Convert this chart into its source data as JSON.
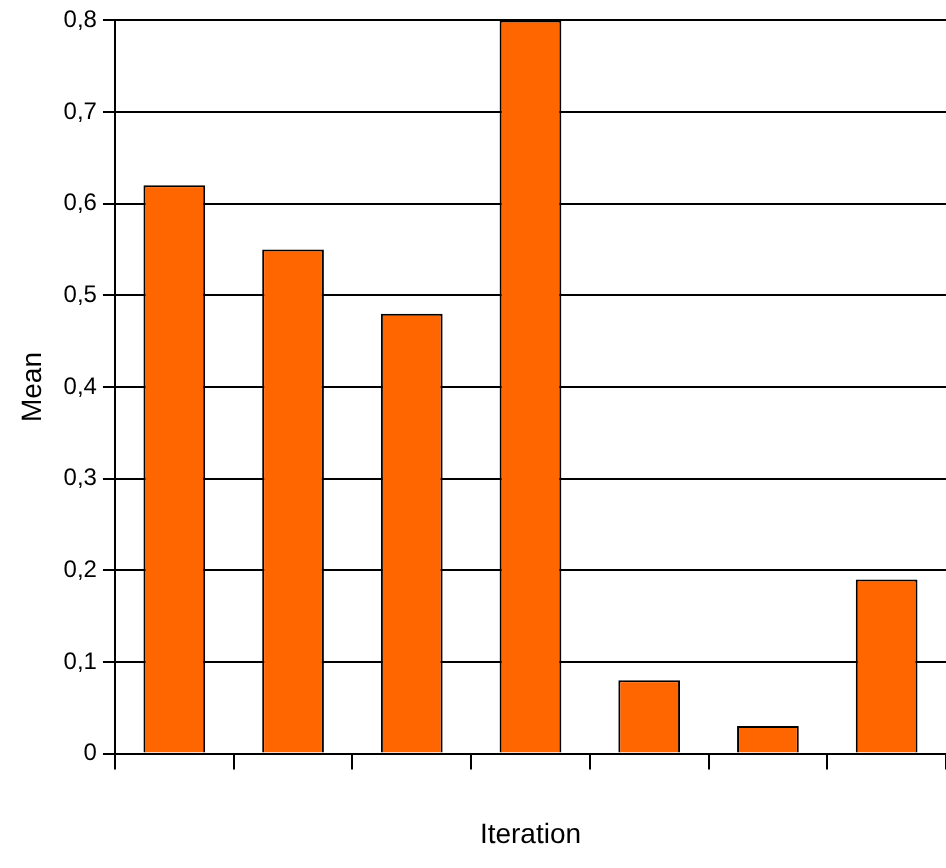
{
  "chart_data": {
    "type": "bar",
    "xlabel": "Iteration",
    "ylabel": "Mean",
    "categories": [
      null,
      null,
      null,
      null,
      null,
      null,
      null
    ],
    "values": [
      0.62,
      0.55,
      0.48,
      0.8,
      0.08,
      0.03,
      0.19
    ],
    "color": "#ff6600",
    "ylim": [
      0,
      0.8
    ],
    "yticks": [
      0,
      {
        "value": 0.1,
        "label": "0,1"
      },
      {
        "value": 0.2,
        "label": "0,2"
      },
      {
        "value": 0.3,
        "label": "0,3"
      },
      {
        "value": 0.4,
        "label": "0,4"
      },
      {
        "value": 0.5,
        "label": "0,5"
      },
      {
        "value": 0.6,
        "label": "0,6"
      },
      {
        "value": 0.7,
        "label": "0,7"
      },
      {
        "value": 0.8,
        "label": "0,8"
      }
    ],
    "grid": "y"
  }
}
